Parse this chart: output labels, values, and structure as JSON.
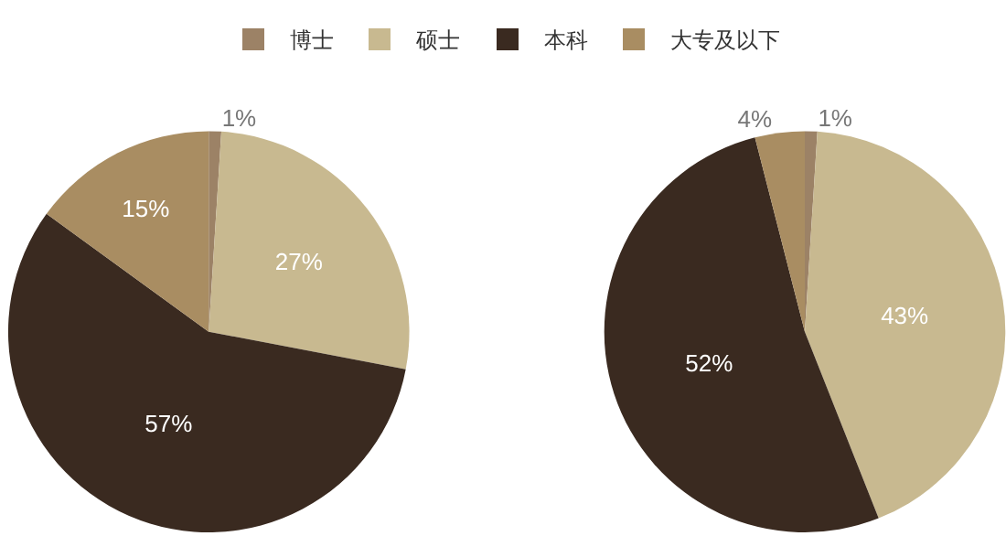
{
  "chart_data": {
    "type": "pie",
    "categories": [
      "博士",
      "硕士",
      "本科",
      "大专及以下"
    ],
    "colors": [
      "#9c8266",
      "#c8b990",
      "#3a2a20",
      "#a98d62"
    ],
    "legend": "top",
    "series": [
      {
        "values": [
          1,
          27,
          57,
          15
        ],
        "value_labels": [
          "1%",
          "27%",
          "57%",
          "15%"
        ]
      },
      {
        "values": [
          1,
          43,
          52,
          4
        ],
        "value_labels": [
          "1%",
          "43%",
          "52%",
          "4%"
        ]
      }
    ]
  }
}
